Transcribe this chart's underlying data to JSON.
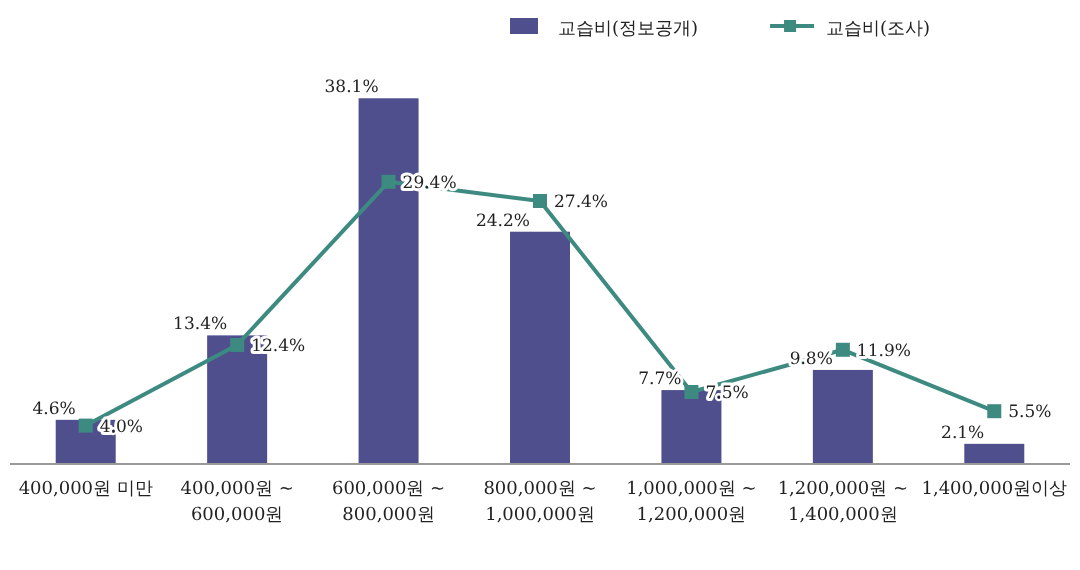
{
  "chart_data": {
    "type": "bar",
    "categories": [
      "400,000원 미만",
      "400,000원 ~ 600,000원",
      "600,000원 ~ 800,000원",
      "800,000원 ~ 1,000,000원",
      "1,000,000원 ~ 1,200,000원",
      "1,200,000원 ~ 1,400,000원",
      "1,400,000원이상"
    ],
    "series": [
      {
        "name": "교습비(정보공개)",
        "color": "#4f4f8e",
        "values": [
          4.6,
          13.4,
          38.1,
          24.2,
          7.7,
          9.8,
          2.1
        ],
        "value_labels": [
          "4.6%",
          "13.4%",
          "38.1%",
          "24.2%",
          "7.7%",
          "9.8%",
          "2.1%"
        ]
      },
      {
        "name": "교습비(조사)",
        "type": "line",
        "color": "#3d8a80",
        "values": [
          4.0,
          12.4,
          29.4,
          27.4,
          7.5,
          11.9,
          5.5
        ],
        "value_labels": [
          "4.0%",
          "12.4%",
          "29.4%",
          "27.4%",
          "7.5%",
          "11.9%",
          "5.5%"
        ]
      }
    ],
    "data_labels": true,
    "legend": "top",
    "marker": "square",
    "line_style": "solid"
  }
}
